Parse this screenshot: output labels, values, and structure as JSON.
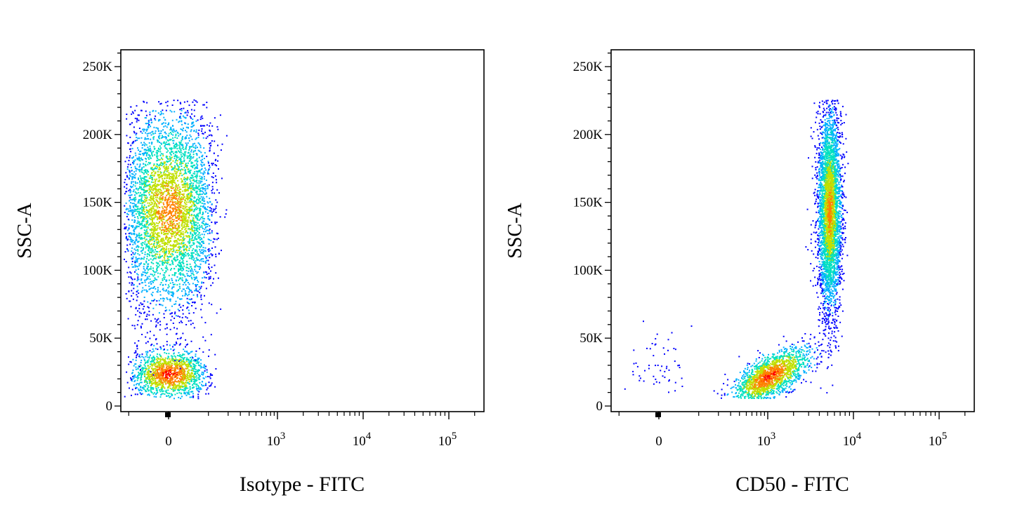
{
  "chart_data": [
    {
      "type": "scatter",
      "subtype": "flow-cytometry-density-dot-plot",
      "title": "",
      "xlabel": "Isotype - FITC",
      "ylabel": "SSC-A",
      "x_scale": "biexponential",
      "ylim": [
        0,
        262144
      ],
      "x_ticks": [
        {
          "label": "0",
          "value": 0
        },
        {
          "label": "10",
          "sup": "3",
          "value": 1000
        },
        {
          "label": "10",
          "sup": "4",
          "value": 10000
        },
        {
          "label": "10",
          "sup": "5",
          "value": 100000
        }
      ],
      "y_ticks": [
        {
          "label": "0",
          "value": 0
        },
        {
          "label": "50K",
          "value": 50000
        },
        {
          "label": "100K",
          "value": 100000
        },
        {
          "label": "150K",
          "value": 150000
        },
        {
          "label": "200K",
          "value": 200000
        },
        {
          "label": "250K",
          "value": 250000
        }
      ],
      "grid": false,
      "colormap": [
        "#0000ff",
        "#00b0ff",
        "#00e0c0",
        "#c0e000",
        "#ff8000",
        "#ff0000"
      ],
      "populations": [
        {
          "x_center": 0,
          "x_spread": 40,
          "y_center": 24000,
          "y_spread": 9000,
          "count": 1400,
          "peak_density": 1.0
        },
        {
          "x_center": 0,
          "x_spread": 55,
          "y_center": 145000,
          "y_spread": 38000,
          "count": 4200,
          "peak_density": 0.85
        }
      ]
    },
    {
      "type": "scatter",
      "subtype": "flow-cytometry-density-dot-plot",
      "title": "",
      "xlabel": "CD50 - FITC",
      "ylabel": "SSC-A",
      "x_scale": "biexponential",
      "ylim": [
        0,
        262144
      ],
      "x_ticks": [
        {
          "label": "0",
          "value": 0
        },
        {
          "label": "10",
          "sup": "3",
          "value": 1000
        },
        {
          "label": "10",
          "sup": "4",
          "value": 10000
        },
        {
          "label": "10",
          "sup": "5",
          "value": 100000
        }
      ],
      "y_ticks": [
        {
          "label": "0",
          "value": 0
        },
        {
          "label": "50K",
          "value": 50000
        },
        {
          "label": "100K",
          "value": 100000
        },
        {
          "label": "150K",
          "value": 150000
        },
        {
          "label": "200K",
          "value": 200000
        },
        {
          "label": "250K",
          "value": 250000
        }
      ],
      "grid": false,
      "colormap": [
        "#0000ff",
        "#00b0ff",
        "#00e0c0",
        "#c0e000",
        "#ff8000",
        "#ff0000"
      ],
      "populations": [
        {
          "x_center": 1000,
          "x_spread_log10": 0.25,
          "y_center": 22000,
          "y_spread": 9000,
          "count": 1800,
          "peak_density": 1.0
        },
        {
          "x_center": 5200,
          "x_spread_log10": 0.07,
          "y_center": 145000,
          "y_spread": 38000,
          "count": 3800,
          "peak_density": 0.85
        },
        {
          "x_center": 0,
          "x_spread": 30,
          "y_center": 28000,
          "y_spread": 12000,
          "count": 60,
          "peak_density": 0.0
        }
      ]
    }
  ]
}
